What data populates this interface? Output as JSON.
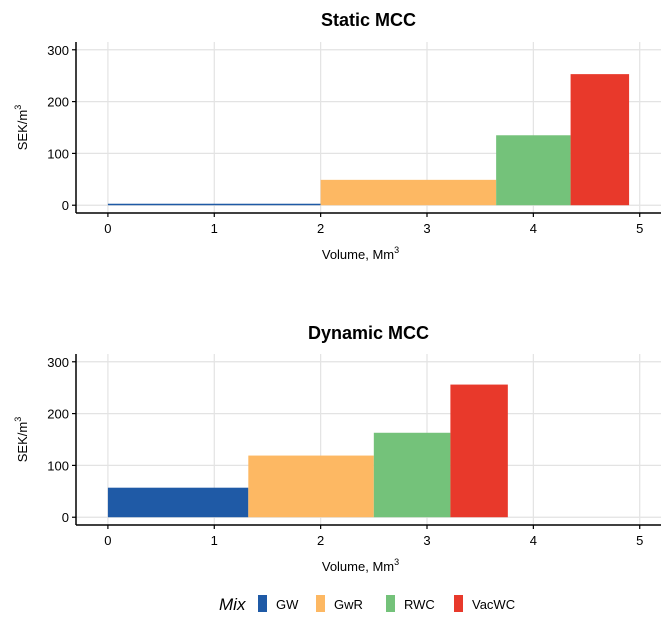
{
  "chart_data": [
    {
      "type": "bar",
      "title": "Static MCC",
      "xlabel": "Volume, Mm",
      "xlabel_sup": "3",
      "ylabel": "SEK/m",
      "ylabel_sup": "3",
      "xlim": [
        -0.3,
        5.2
      ],
      "ylim": [
        -15,
        315
      ],
      "x_ticks": [
        0,
        1,
        2,
        3,
        4,
        5
      ],
      "y_ticks": [
        0,
        100,
        200,
        300
      ],
      "grid": true,
      "bars": [
        {
          "name": "GW",
          "x_start": 0,
          "x_end": 2.0,
          "value": 2
        },
        {
          "name": "GwR",
          "x_start": 2.0,
          "x_end": 3.65,
          "value": 49
        },
        {
          "name": "RWC",
          "x_start": 3.65,
          "x_end": 4.35,
          "value": 135
        },
        {
          "name": "VacWC",
          "x_start": 4.35,
          "x_end": 4.9,
          "value": 253
        }
      ]
    },
    {
      "type": "bar",
      "title": "Dynamic MCC",
      "xlabel": "Volume, Mm",
      "xlabel_sup": "3",
      "ylabel": "SEK/m",
      "ylabel_sup": "3",
      "xlim": [
        -0.3,
        5.2
      ],
      "ylim": [
        -15,
        315
      ],
      "x_ticks": [
        0,
        1,
        2,
        3,
        4,
        5
      ],
      "y_ticks": [
        0,
        100,
        200,
        300
      ],
      "grid": true,
      "bars": [
        {
          "name": "GW",
          "x_start": 0,
          "x_end": 1.32,
          "value": 57
        },
        {
          "name": "GwR",
          "x_start": 1.32,
          "x_end": 2.5,
          "value": 119
        },
        {
          "name": "RWC",
          "x_start": 2.5,
          "x_end": 3.22,
          "value": 163
        },
        {
          "name": "VacWC",
          "x_start": 3.22,
          "x_end": 3.76,
          "value": 256
        }
      ]
    }
  ],
  "legend": {
    "title": "Mix",
    "placement": "bottom",
    "items": [
      {
        "label": "GW",
        "color": "#1f5aa6"
      },
      {
        "label": "GwR",
        "color": "#fdb863"
      },
      {
        "label": "RWC",
        "color": "#74c27a"
      },
      {
        "label": "VacWC",
        "color": "#e8392b"
      }
    ]
  }
}
